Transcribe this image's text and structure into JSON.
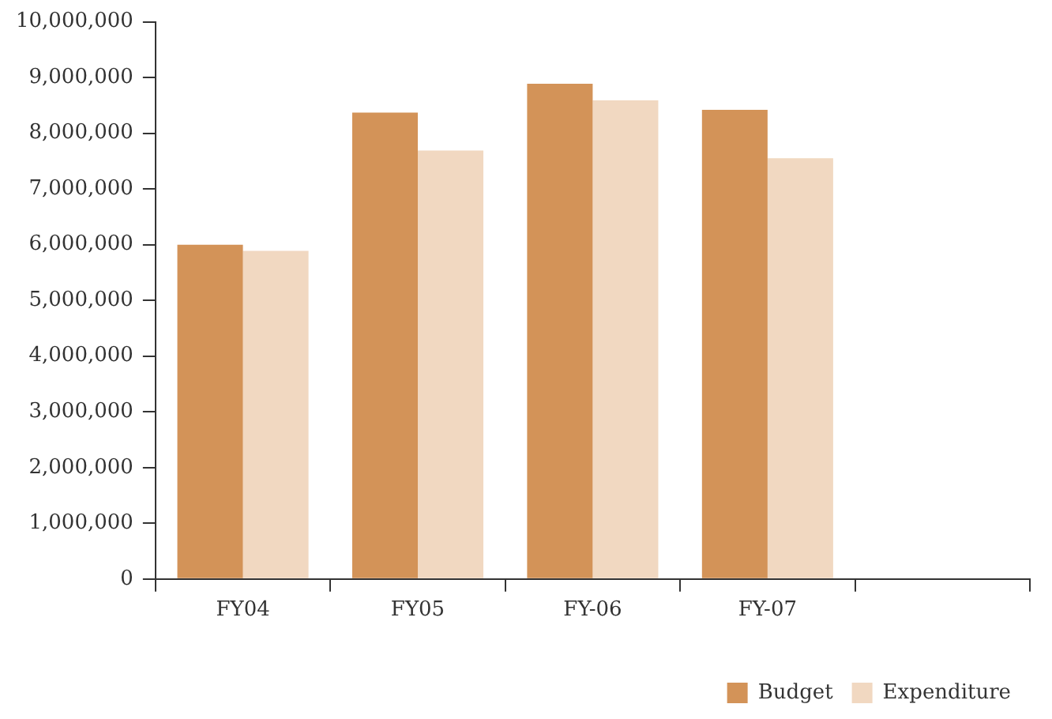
{
  "chart_data": {
    "type": "bar",
    "categories": [
      "FY04",
      "FY05",
      "FY-06",
      "FY-07",
      null
    ],
    "series": [
      {
        "name": "Budget",
        "color": "#d39358",
        "values": [
          6000000,
          8370000,
          8890000,
          8420000,
          null
        ]
      },
      {
        "name": "Expenditure",
        "color": "#f1d8c1",
        "values": [
          5890000,
          7690000,
          8590000,
          7550000,
          null
        ]
      }
    ],
    "ylim": [
      0,
      10000000
    ],
    "yticks": [
      0,
      {
        "value": 1000000,
        "label": "1,000,000"
      },
      {
        "value": 2000000,
        "label": "2,000,000"
      },
      {
        "value": 3000000,
        "label": "3,000,000"
      },
      {
        "value": 4000000,
        "label": "4,000,000"
      },
      {
        "value": 5000000,
        "label": "5,000,000"
      },
      {
        "value": 6000000,
        "label": "6,000,000"
      },
      {
        "value": 7000000,
        "label": "7,000,000"
      },
      {
        "value": 8000000,
        "label": "8,000,000"
      },
      {
        "value": 9000000,
        "label": "9,000,000"
      },
      {
        "value": 10000000,
        "label": "10,000,000"
      }
    ],
    "grid": false,
    "legend": "bottom right"
  }
}
